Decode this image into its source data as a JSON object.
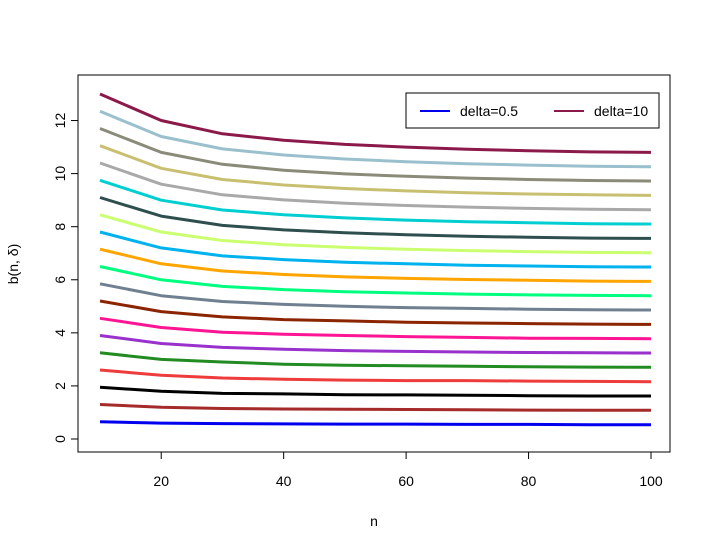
{
  "chart_data": {
    "type": "line",
    "title": "",
    "xlabel": "n",
    "ylabel": "b(n, δ)",
    "xlim": [
      10,
      100
    ],
    "ylim": [
      0,
      13
    ],
    "x_ticks": [
      20,
      40,
      60,
      80,
      100
    ],
    "y_ticks": [
      0,
      2,
      4,
      6,
      8,
      10,
      12
    ],
    "grid": false,
    "legend_position": "top-right",
    "legend": [
      {
        "label": "delta=0.5",
        "color": "#0000ee"
      },
      {
        "label": "delta=10",
        "color": "#8b1a4a"
      }
    ],
    "x": [
      10,
      20,
      30,
      40,
      50,
      60,
      70,
      80,
      90,
      100
    ],
    "series": [
      {
        "color": "#0000ee",
        "values": [
          0.65,
          0.6,
          0.58,
          0.57,
          0.56,
          0.56,
          0.55,
          0.55,
          0.54,
          0.54
        ]
      },
      {
        "color": "#a52a2a",
        "values": [
          1.3,
          1.2,
          1.15,
          1.13,
          1.12,
          1.11,
          1.1,
          1.09,
          1.08,
          1.08
        ]
      },
      {
        "color": "#000000",
        "values": [
          1.95,
          1.8,
          1.72,
          1.7,
          1.67,
          1.66,
          1.65,
          1.63,
          1.62,
          1.62
        ]
      },
      {
        "color": "#ee3b3b",
        "values": [
          2.6,
          2.4,
          2.3,
          2.25,
          2.22,
          2.2,
          2.2,
          2.18,
          2.17,
          2.16
        ]
      },
      {
        "color": "#228b22",
        "values": [
          3.25,
          3.0,
          2.9,
          2.82,
          2.78,
          2.76,
          2.74,
          2.72,
          2.71,
          2.7
        ]
      },
      {
        "color": "#9932cc",
        "values": [
          3.9,
          3.6,
          3.45,
          3.38,
          3.33,
          3.3,
          3.28,
          3.26,
          3.25,
          3.24
        ]
      },
      {
        "color": "#ff1493",
        "values": [
          4.55,
          4.2,
          4.02,
          3.95,
          3.9,
          3.86,
          3.83,
          3.8,
          3.79,
          3.78
        ]
      },
      {
        "color": "#8b2500",
        "values": [
          5.2,
          4.8,
          4.6,
          4.5,
          4.45,
          4.4,
          4.37,
          4.35,
          4.33,
          4.32
        ]
      },
      {
        "color": "#708090",
        "values": [
          5.85,
          5.4,
          5.18,
          5.07,
          5.0,
          4.95,
          4.92,
          4.89,
          4.87,
          4.86
        ]
      },
      {
        "color": "#00ff7f",
        "values": [
          6.5,
          6.0,
          5.75,
          5.63,
          5.55,
          5.5,
          5.46,
          5.43,
          5.41,
          5.4
        ]
      },
      {
        "color": "#ffa500",
        "values": [
          7.15,
          6.6,
          6.33,
          6.2,
          6.11,
          6.05,
          6.01,
          5.98,
          5.95,
          5.94
        ]
      },
      {
        "color": "#00b2ee",
        "values": [
          7.8,
          7.2,
          6.9,
          6.76,
          6.66,
          6.6,
          6.55,
          6.52,
          6.49,
          6.48
        ]
      },
      {
        "color": "#caff70",
        "values": [
          8.45,
          7.8,
          7.48,
          7.32,
          7.22,
          7.15,
          7.1,
          7.06,
          7.03,
          7.02
        ]
      },
      {
        "color": "#2f4f4f",
        "values": [
          9.1,
          8.4,
          8.05,
          7.88,
          7.77,
          7.7,
          7.64,
          7.6,
          7.57,
          7.56
        ]
      },
      {
        "color": "#00ced1",
        "values": [
          9.75,
          9.0,
          8.63,
          8.45,
          8.33,
          8.25,
          8.19,
          8.15,
          8.11,
          8.1
        ]
      },
      {
        "color": "#a9a9a9",
        "values": [
          10.4,
          9.6,
          9.2,
          9.01,
          8.88,
          8.8,
          8.74,
          8.69,
          8.66,
          8.64
        ]
      },
      {
        "color": "#c8c070",
        "values": [
          11.05,
          10.2,
          9.78,
          9.57,
          9.44,
          9.35,
          9.28,
          9.23,
          9.2,
          9.18
        ]
      },
      {
        "color": "#8b8b7a",
        "values": [
          11.7,
          10.8,
          10.35,
          10.13,
          9.99,
          9.9,
          9.83,
          9.78,
          9.74,
          9.72
        ]
      },
      {
        "color": "#9ac0cd",
        "values": [
          12.35,
          11.4,
          10.93,
          10.7,
          10.55,
          10.45,
          10.37,
          10.32,
          10.28,
          10.26
        ]
      },
      {
        "color": "#8b1a4a",
        "values": [
          13.0,
          12.0,
          11.5,
          11.26,
          11.1,
          11.0,
          10.92,
          10.86,
          10.82,
          10.8
        ]
      }
    ]
  }
}
